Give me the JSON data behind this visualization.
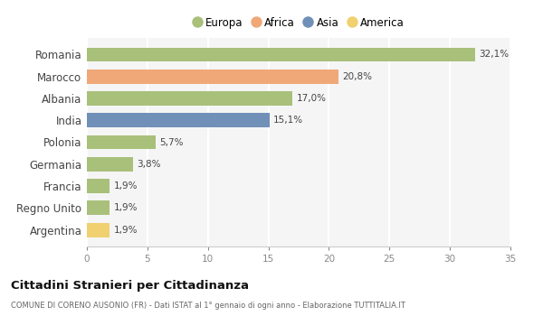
{
  "categories": [
    "Romania",
    "Marocco",
    "Albania",
    "India",
    "Polonia",
    "Germania",
    "Francia",
    "Regno Unito",
    "Argentina"
  ],
  "values": [
    32.1,
    20.8,
    17.0,
    15.1,
    5.7,
    3.8,
    1.9,
    1.9,
    1.9
  ],
  "labels": [
    "32,1%",
    "20,8%",
    "17,0%",
    "15,1%",
    "5,7%",
    "3,8%",
    "1,9%",
    "1,9%",
    "1,9%"
  ],
  "colors": [
    "#a8c07a",
    "#f0a878",
    "#a8c07a",
    "#7090b8",
    "#a8c07a",
    "#a8c07a",
    "#a8c07a",
    "#a8c07a",
    "#f0d070"
  ],
  "legend_labels": [
    "Europa",
    "Africa",
    "Asia",
    "America"
  ],
  "legend_colors": [
    "#a8c07a",
    "#f0a878",
    "#7090b8",
    "#f0d070"
  ],
  "title": "Cittadini Stranieri per Cittadinanza",
  "subtitle": "COMUNE DI CORENO AUSONIO (FR) - Dati ISTAT al 1° gennaio di ogni anno - Elaborazione TUTTITALIA.IT",
  "xlim": [
    0,
    35
  ],
  "xticks": [
    0,
    5,
    10,
    15,
    20,
    25,
    30,
    35
  ],
  "background_color": "#ffffff",
  "plot_bg_color": "#f5f5f5",
  "grid_color": "#ffffff",
  "bar_height": 0.65
}
